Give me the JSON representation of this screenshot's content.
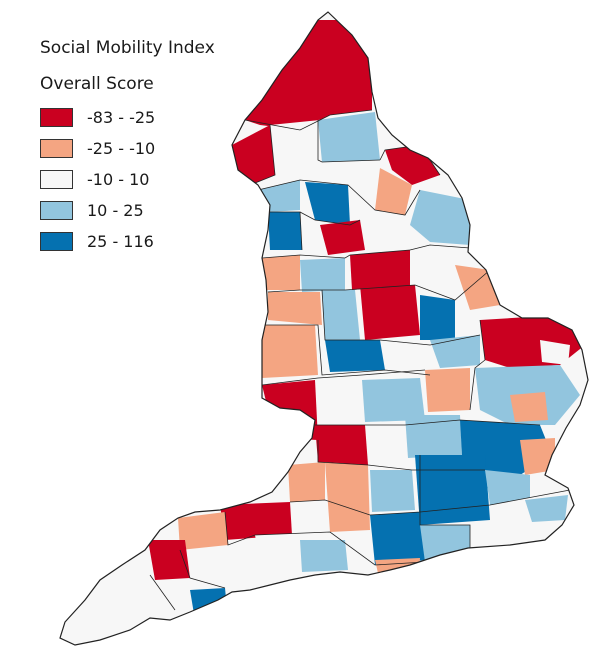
{
  "legend": {
    "title": "Social Mobility Index",
    "subtitle": "Overall Score",
    "classes": [
      {
        "label": "-83 - -25",
        "color": "#ca0020"
      },
      {
        "label": "-25 - -10",
        "color": "#f4a582"
      },
      {
        "label": "-10 - 10",
        "color": "#f7f7f7"
      },
      {
        "label": "10 - 25",
        "color": "#92c5de"
      },
      {
        "label": "25 - 116",
        "color": "#0571b0"
      }
    ]
  },
  "map": {
    "region": "England",
    "boundary_color": "#222222"
  }
}
